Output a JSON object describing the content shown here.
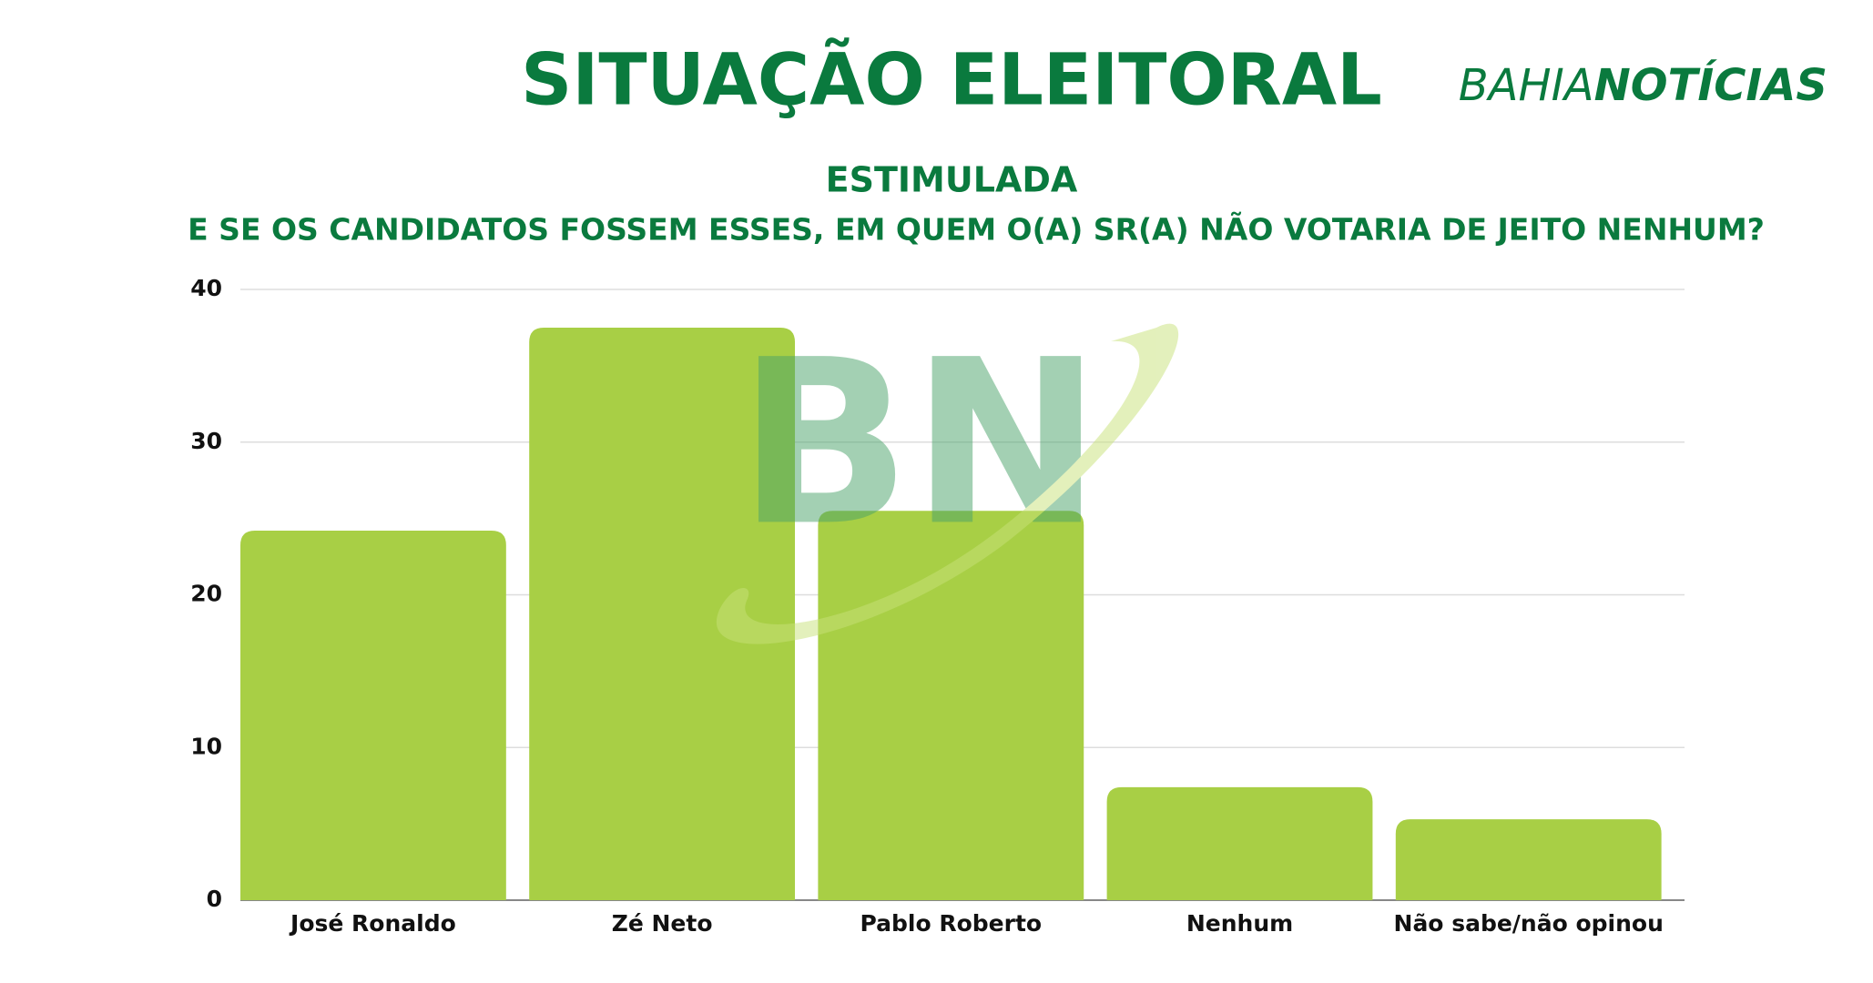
{
  "chart_data": {
    "type": "bar",
    "title": "SITUAÇÃO ELEITORAL",
    "brand": [
      "BAHIA",
      "NOTÍCIAS"
    ],
    "watermark": "BN",
    "subtitle": "ESTIMULADA",
    "question": "E SE OS CANDIDATOS FOSSEM ESSES, EM QUEM O(A) SR(A) NÃO VOTARIA DE JEITO NENHUM?",
    "categories": [
      "José Ronaldo",
      "Zé Neto",
      "Pablo Roberto",
      "Nenhum",
      "Não sabe/não opinou"
    ],
    "values": [
      24.2,
      37.5,
      25.5,
      7.4,
      5.3
    ],
    "color": "#a8cf45",
    "ylim": [
      0,
      40
    ],
    "yticks": [
      0,
      10,
      20,
      30,
      40
    ],
    "grid": true
  }
}
